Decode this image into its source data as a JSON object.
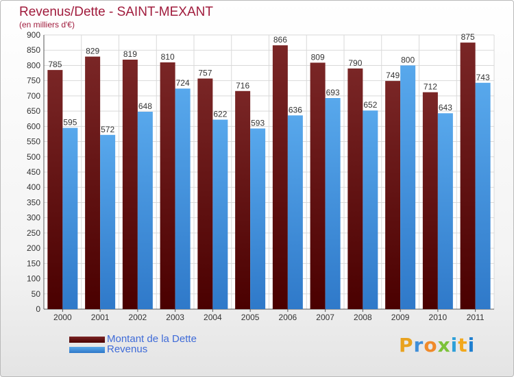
{
  "title": "Revenus/Dette - SAINT-MEXANT",
  "subtitle": "(en milliers d'€)",
  "chart_data": {
    "type": "bar",
    "title": "Revenus/Dette - SAINT-MEXANT",
    "subtitle": "(en milliers d'€)",
    "categories": [
      "2000",
      "2001",
      "2002",
      "2003",
      "2004",
      "2005",
      "2006",
      "2007",
      "2008",
      "2009",
      "2010",
      "2011"
    ],
    "series": [
      {
        "name": "Montant de la Dette",
        "values": [
          785,
          829,
          819,
          810,
          757,
          716,
          866,
          809,
          790,
          749,
          712,
          875
        ],
        "color": "#6b1414"
      },
      {
        "name": "Revenus",
        "values": [
          595,
          572,
          648,
          724,
          622,
          593,
          636,
          693,
          652,
          800,
          643,
          743
        ],
        "color": "#4fa3e6"
      }
    ],
    "ylim": [
      0,
      900
    ],
    "yticks": [
      "0",
      "50",
      "100",
      "150",
      "200",
      "250",
      "300",
      "350",
      "400",
      "450",
      "500",
      "550",
      "600",
      "650",
      "700",
      "750",
      "800",
      "850",
      "900"
    ],
    "ytick_values": [
      0,
      50,
      100,
      150,
      200,
      250,
      300,
      350,
      400,
      450,
      500,
      550,
      600,
      650,
      700,
      750,
      800,
      850,
      900
    ],
    "grid": true,
    "legend": "bottom-left",
    "data_labels": true
  },
  "legend": {
    "items": [
      {
        "label": "Montant de la Dette"
      },
      {
        "label": "Revenus"
      }
    ]
  },
  "logo": {
    "letters": [
      "P",
      "r",
      "o",
      "x",
      "i",
      "t",
      "i"
    ],
    "colors": [
      "#e8a21f",
      "#3f8ed8",
      "#f08a2a",
      "#7cc23a",
      "#2fa0d8",
      "#f2a81c",
      "#1f7fd0"
    ]
  }
}
